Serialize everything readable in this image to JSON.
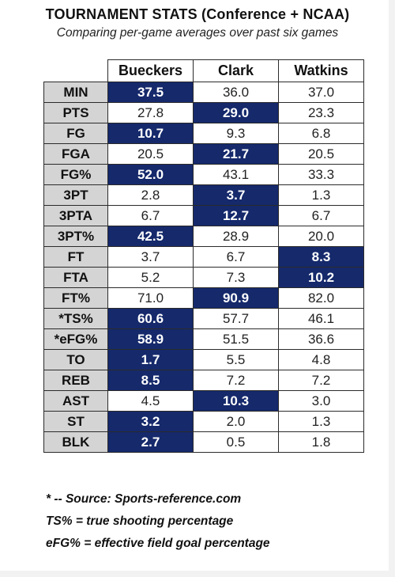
{
  "title": "TOURNAMENT STATS (Conference + NCAA)",
  "subtitle": "Comparing per-game averages over past six games",
  "columns": [
    "Bueckers",
    "Clark",
    "Watkins"
  ],
  "rows": [
    {
      "label": "MIN",
      "values": [
        "37.5",
        "36.0",
        "37.0"
      ],
      "highlight": 0
    },
    {
      "label": "PTS",
      "values": [
        "27.8",
        "29.0",
        "23.3"
      ],
      "highlight": 1
    },
    {
      "label": "FG",
      "values": [
        "10.7",
        "9.3",
        "6.8"
      ],
      "highlight": 0
    },
    {
      "label": "FGA",
      "values": [
        "20.5",
        "21.7",
        "20.5"
      ],
      "highlight": 1
    },
    {
      "label": "FG%",
      "values": [
        "52.0",
        "43.1",
        "33.3"
      ],
      "highlight": 0
    },
    {
      "label": "3PT",
      "values": [
        "2.8",
        "3.7",
        "1.3"
      ],
      "highlight": 1
    },
    {
      "label": "3PTA",
      "values": [
        "6.7",
        "12.7",
        "6.7"
      ],
      "highlight": 1
    },
    {
      "label": "3PT%",
      "values": [
        "42.5",
        "28.9",
        "20.0"
      ],
      "highlight": 0
    },
    {
      "label": "FT",
      "values": [
        "3.7",
        "6.7",
        "8.3"
      ],
      "highlight": 2
    },
    {
      "label": "FTA",
      "values": [
        "5.2",
        "7.3",
        "10.2"
      ],
      "highlight": 2
    },
    {
      "label": "FT%",
      "values": [
        "71.0",
        "90.9",
        "82.0"
      ],
      "highlight": 1
    },
    {
      "label": "*TS%",
      "values": [
        "60.6",
        "57.7",
        "46.1"
      ],
      "highlight": 0
    },
    {
      "label": "*eFG%",
      "values": [
        "58.9",
        "51.5",
        "36.6"
      ],
      "highlight": 0
    },
    {
      "label": "TO",
      "values": [
        "1.7",
        "5.5",
        "4.8"
      ],
      "highlight": 0
    },
    {
      "label": "REB",
      "values": [
        "8.5",
        "7.2",
        "7.2"
      ],
      "highlight": 0
    },
    {
      "label": "AST",
      "values": [
        "4.5",
        "10.3",
        "3.0"
      ],
      "highlight": 1
    },
    {
      "label": "ST",
      "values": [
        "3.2",
        "2.0",
        "1.3"
      ],
      "highlight": 0
    },
    {
      "label": "BLK",
      "values": [
        "2.7",
        "0.5",
        "1.8"
      ],
      "highlight": 0
    }
  ],
  "footnotes": {
    "source": "* -- Source: Sports-reference.com",
    "ts": "TS% = true shooting percentage",
    "efg": "eFG% = effective field goal percentage"
  },
  "colors": {
    "highlight_bg": "#15296b",
    "highlight_text": "#ffffff",
    "label_bg": "#d4d4d4"
  }
}
